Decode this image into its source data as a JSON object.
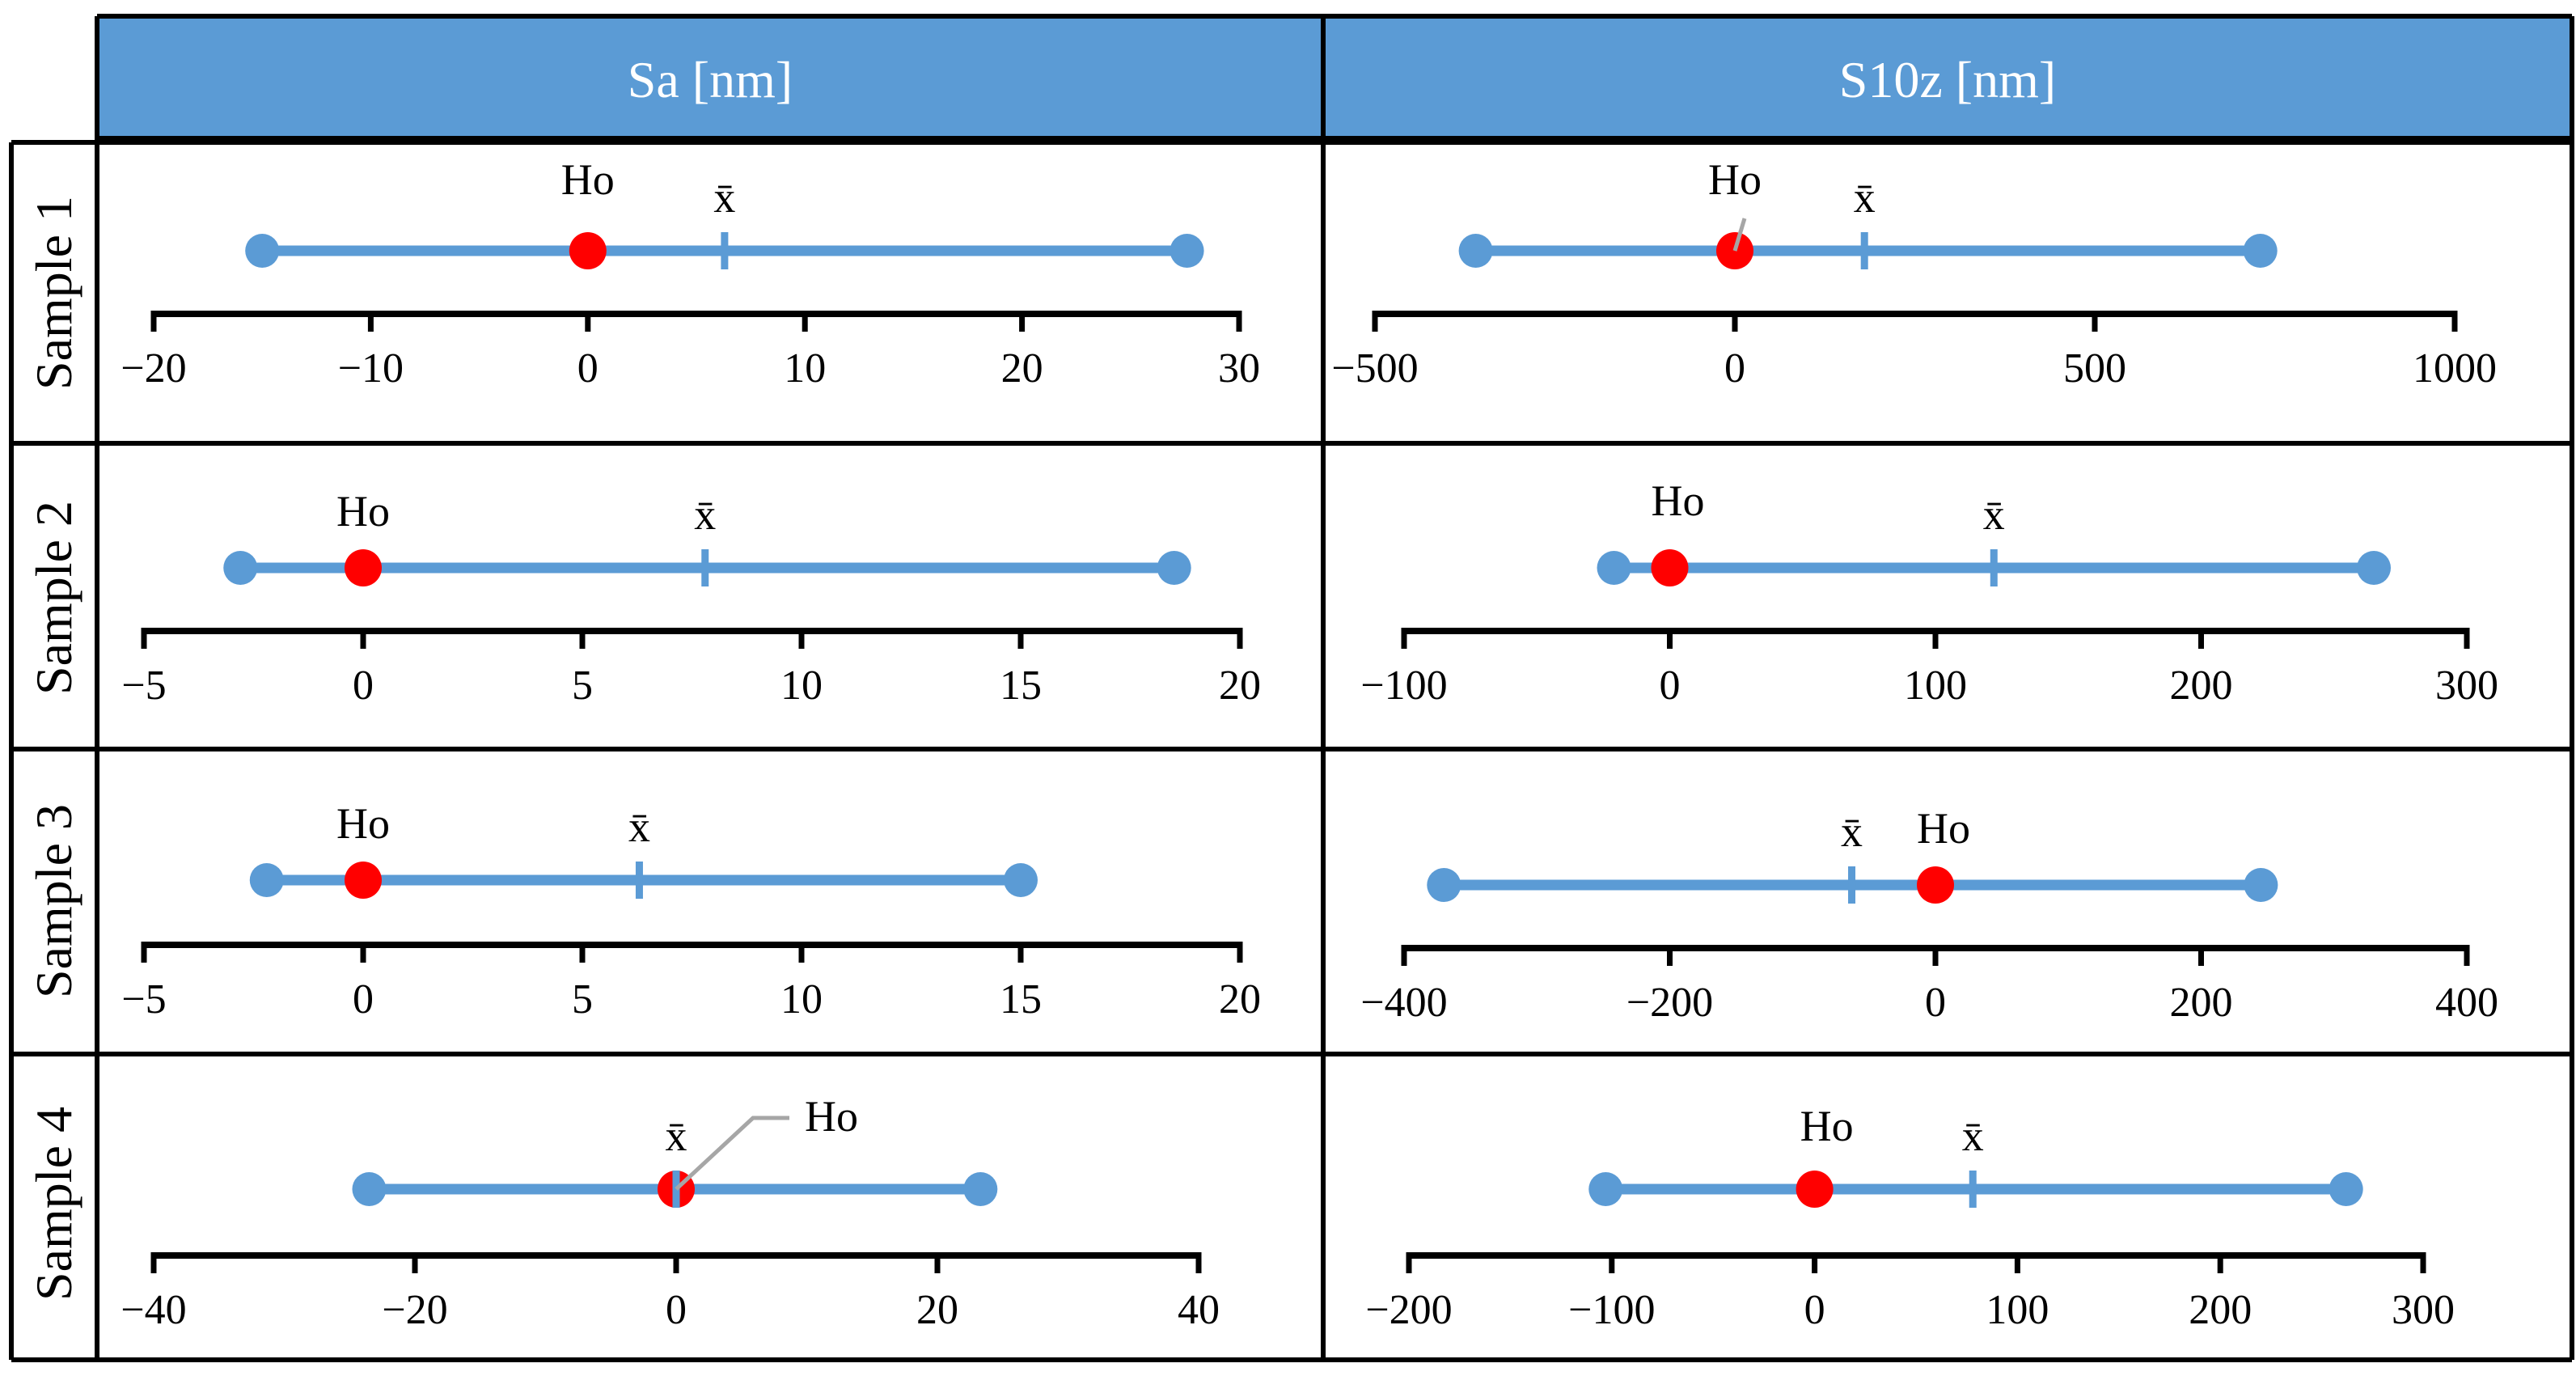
{
  "columns": [
    "Sa [nm]",
    "S10z [nm]"
  ],
  "rows": [
    "Sample 1",
    "Sample 2",
    "Sample 3",
    "Sample 4"
  ],
  "colors": {
    "header_bg": "#5b9bd5",
    "range_line": "#5b9bd5",
    "ho_marker": "#ff0000",
    "axis": "#000000",
    "leader": "#a6a6a6"
  },
  "chart_data": [
    {
      "type": "range",
      "row": "Sample 1",
      "column": "Sa [nm]",
      "xlim": [
        -20,
        30
      ],
      "ticks": [
        -20,
        -10,
        0,
        10,
        20,
        30
      ],
      "tick_labels": [
        "−20",
        "−10",
        "0",
        "10",
        "20",
        "30"
      ],
      "min": -15,
      "max": 27.6,
      "mean": 6.3,
      "ho": 0,
      "ho_label": "Ho",
      "mean_label": "x̄"
    },
    {
      "type": "range",
      "row": "Sample 1",
      "column": "S10z [nm]",
      "xlim": [
        -500,
        1000
      ],
      "ticks": [
        -500,
        0,
        500,
        1000
      ],
      "tick_labels": [
        "−500",
        "0",
        "500",
        "1000"
      ],
      "min": -360,
      "max": 730,
      "mean": 180,
      "ho": 0,
      "ho_label": "Ho",
      "mean_label": "x̄"
    },
    {
      "type": "range",
      "row": "Sample 2",
      "column": "Sa [nm]",
      "xlim": [
        -5,
        20
      ],
      "ticks": [
        -5,
        0,
        5,
        10,
        15,
        20
      ],
      "tick_labels": [
        "−5",
        "0",
        "5",
        "10",
        "15",
        "20"
      ],
      "min": -2.8,
      "max": 18.5,
      "mean": 7.8,
      "ho": 0,
      "ho_label": "Ho",
      "mean_label": "x̄"
    },
    {
      "type": "range",
      "row": "Sample 2",
      "column": "S10z [nm]",
      "xlim": [
        -100,
        300
      ],
      "ticks": [
        -100,
        0,
        100,
        200,
        300
      ],
      "tick_labels": [
        "−100",
        "0",
        "100",
        "200",
        "300"
      ],
      "min": -21,
      "max": 265,
      "mean": 122,
      "ho": 0,
      "ho_label": "Ho",
      "mean_label": "x̄"
    },
    {
      "type": "range",
      "row": "Sample 3",
      "column": "Sa [nm]",
      "xlim": [
        -5,
        20
      ],
      "ticks": [
        -5,
        0,
        5,
        10,
        15,
        20
      ],
      "tick_labels": [
        "−5",
        "0",
        "5",
        "10",
        "15",
        "20"
      ],
      "min": -2.2,
      "max": 15,
      "mean": 6.3,
      "ho": 0,
      "ho_label": "Ho",
      "mean_label": "x̄"
    },
    {
      "type": "range",
      "row": "Sample 3",
      "column": "S10z [nm]",
      "xlim": [
        -400,
        400
      ],
      "ticks": [
        -400,
        -200,
        0,
        200,
        400
      ],
      "tick_labels": [
        "−400",
        "−200",
        "0",
        "200",
        "400"
      ],
      "min": -370,
      "max": 245,
      "mean": -63,
      "ho": 0,
      "ho_label": "Ho",
      "mean_label": "x̄"
    },
    {
      "type": "range",
      "row": "Sample 4",
      "column": "Sa [nm]",
      "xlim": [
        -40,
        40
      ],
      "ticks": [
        -40,
        -20,
        0,
        20,
        40
      ],
      "tick_labels": [
        "−40",
        "−20",
        "0",
        "20",
        "40"
      ],
      "min": -23.5,
      "max": 23.3,
      "mean": 0,
      "ho": 0,
      "ho_label": "Ho",
      "mean_label": "x̄"
    },
    {
      "type": "range",
      "row": "Sample 4",
      "column": "S10z [nm]",
      "xlim": [
        -200,
        300
      ],
      "ticks": [
        -200,
        -100,
        0,
        100,
        200,
        300
      ],
      "tick_labels": [
        "−200",
        "−100",
        "0",
        "100",
        "200",
        "300"
      ],
      "min": -103,
      "max": 262,
      "mean": 78,
      "ho": 0,
      "ho_label": "Ho",
      "mean_label": "x̄"
    }
  ]
}
